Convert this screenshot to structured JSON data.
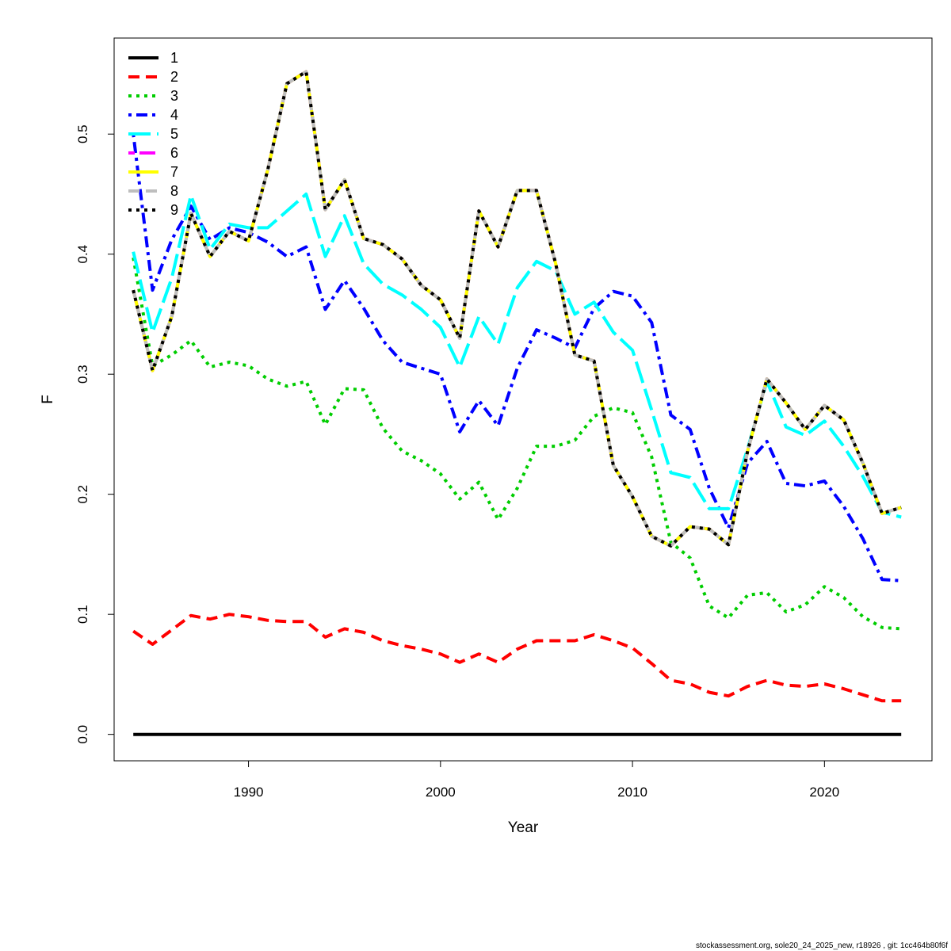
{
  "footer": "stockassessment.org, sole20_24_2025_new, r18926 , git: 1cc464b80f6f",
  "chart_data": {
    "type": "line",
    "title": "",
    "xlabel": "Year",
    "ylabel": "F",
    "xlim": [
      1983,
      2025.6
    ],
    "ylim": [
      -0.022,
      0.58
    ],
    "xticks": [
      1990,
      2000,
      2010,
      2020
    ],
    "yticks": [
      0.0,
      0.1,
      0.2,
      0.3,
      0.4,
      0.5
    ],
    "ytick_labels": [
      "0.0",
      "0.1",
      "0.2",
      "0.3",
      "0.4",
      "0.5"
    ],
    "legend": {
      "position": "top-left",
      "entries": [
        "1",
        "2",
        "3",
        "4",
        "5",
        "6",
        "7",
        "8",
        "9"
      ]
    },
    "x": [
      1984,
      1985,
      1986,
      1987,
      1988,
      1989,
      1990,
      1991,
      1992,
      1993,
      1994,
      1995,
      1996,
      1997,
      1998,
      1999,
      2000,
      2001,
      2002,
      2003,
      2004,
      2005,
      2006,
      2007,
      2008,
      2009,
      2010,
      2011,
      2012,
      2013,
      2014,
      2015,
      2016,
      2017,
      2018,
      2019,
      2020,
      2021,
      2022,
      2023,
      2024
    ],
    "series": [
      {
        "name": "1",
        "color": "#000000",
        "dash": "solid",
        "values": [
          0,
          0,
          0,
          0,
          0,
          0,
          0,
          0,
          0,
          0,
          0,
          0,
          0,
          0,
          0,
          0,
          0,
          0,
          0,
          0,
          0,
          0,
          0,
          0,
          0,
          0,
          0,
          0,
          0,
          0,
          0,
          0,
          0,
          0,
          0,
          0,
          0,
          0,
          0,
          0,
          0
        ]
      },
      {
        "name": "2",
        "color": "#ff0000",
        "dash": "dashed",
        "values": [
          0.086,
          0.075,
          0.087,
          0.099,
          0.096,
          0.1,
          0.098,
          0.095,
          0.094,
          0.094,
          0.081,
          0.088,
          0.085,
          0.078,
          0.074,
          0.071,
          0.067,
          0.06,
          0.067,
          0.06,
          0.071,
          0.078,
          0.078,
          0.078,
          0.083,
          0.078,
          0.072,
          0.059,
          0.045,
          0.042,
          0.035,
          0.032,
          0.04,
          0.045,
          0.041,
          0.04,
          0.042,
          0.038,
          0.033,
          0.028,
          0.028
        ]
      },
      {
        "name": "3",
        "color": "#00cd00",
        "dash": "dotted",
        "values": [
          0.397,
          0.307,
          0.316,
          0.328,
          0.306,
          0.31,
          0.307,
          0.296,
          0.29,
          0.294,
          0.258,
          0.288,
          0.287,
          0.255,
          0.236,
          0.228,
          0.217,
          0.196,
          0.21,
          0.179,
          0.205,
          0.24,
          0.24,
          0.245,
          0.265,
          0.272,
          0.268,
          0.231,
          0.16,
          0.147,
          0.107,
          0.097,
          0.116,
          0.118,
          0.102,
          0.108,
          0.123,
          0.114,
          0.098,
          0.089,
          0.088
        ]
      },
      {
        "name": "4",
        "color": "#0000ff",
        "dash": "dotdash",
        "values": [
          0.5,
          0.37,
          0.412,
          0.44,
          0.412,
          0.422,
          0.418,
          0.41,
          0.398,
          0.406,
          0.354,
          0.378,
          0.355,
          0.328,
          0.31,
          0.305,
          0.3,
          0.252,
          0.278,
          0.257,
          0.305,
          0.337,
          0.33,
          0.322,
          0.355,
          0.369,
          0.365,
          0.343,
          0.266,
          0.254,
          0.205,
          0.172,
          0.226,
          0.244,
          0.209,
          0.207,
          0.211,
          0.19,
          0.163,
          0.129,
          0.128
        ]
      },
      {
        "name": "5",
        "color": "#00ffff",
        "dash": "longdash",
        "values": [
          0.402,
          0.335,
          0.38,
          0.449,
          0.404,
          0.425,
          0.422,
          0.422,
          0.436,
          0.45,
          0.398,
          0.432,
          0.392,
          0.375,
          0.366,
          0.354,
          0.339,
          0.306,
          0.348,
          0.325,
          0.372,
          0.394,
          0.386,
          0.35,
          0.36,
          0.335,
          0.32,
          0.27,
          0.218,
          0.214,
          0.188,
          0.188,
          0.238,
          0.294,
          0.256,
          0.249,
          0.261,
          0.24,
          0.215,
          0.185,
          0.181
        ]
      },
      {
        "name": "6",
        "color": "#ff00ff",
        "dash": "twodash",
        "values": [
          0.37,
          0.303,
          0.348,
          0.434,
          0.398,
          0.419,
          0.411,
          0.47,
          0.542,
          0.552,
          0.437,
          0.462,
          0.413,
          0.408,
          0.396,
          0.374,
          0.362,
          0.33,
          0.436,
          0.406,
          0.453,
          0.453,
          0.392,
          0.316,
          0.311,
          0.224,
          0.198,
          0.165,
          0.157,
          0.173,
          0.171,
          0.158,
          0.236,
          0.296,
          0.276,
          0.254,
          0.274,
          0.262,
          0.226,
          0.184,
          0.189
        ]
      },
      {
        "name": "7",
        "color": "#ffff00",
        "dash": "solid",
        "values": [
          0.37,
          0.303,
          0.348,
          0.434,
          0.398,
          0.419,
          0.411,
          0.47,
          0.542,
          0.552,
          0.437,
          0.462,
          0.413,
          0.408,
          0.396,
          0.374,
          0.362,
          0.33,
          0.436,
          0.406,
          0.453,
          0.453,
          0.392,
          0.316,
          0.311,
          0.224,
          0.198,
          0.165,
          0.157,
          0.173,
          0.171,
          0.158,
          0.236,
          0.296,
          0.276,
          0.254,
          0.274,
          0.262,
          0.226,
          0.184,
          0.189
        ]
      },
      {
        "name": "8",
        "color": "#bebebe",
        "dash": "dashed",
        "values": [
          0.37,
          0.303,
          0.348,
          0.434,
          0.398,
          0.419,
          0.411,
          0.47,
          0.542,
          0.552,
          0.437,
          0.462,
          0.413,
          0.408,
          0.396,
          0.374,
          0.362,
          0.33,
          0.436,
          0.406,
          0.453,
          0.453,
          0.392,
          0.316,
          0.311,
          0.224,
          0.198,
          0.165,
          0.157,
          0.173,
          0.171,
          0.158,
          0.236,
          0.296,
          0.276,
          0.254,
          0.274,
          0.262,
          0.226,
          0.184,
          0.189
        ]
      },
      {
        "name": "9",
        "color": "#000000",
        "dash": "dotted",
        "values": [
          0.37,
          0.303,
          0.348,
          0.434,
          0.398,
          0.419,
          0.411,
          0.47,
          0.542,
          0.552,
          0.437,
          0.462,
          0.413,
          0.408,
          0.396,
          0.374,
          0.362,
          0.33,
          0.436,
          0.406,
          0.453,
          0.453,
          0.392,
          0.316,
          0.311,
          0.224,
          0.198,
          0.165,
          0.157,
          0.173,
          0.171,
          0.158,
          0.236,
          0.296,
          0.276,
          0.254,
          0.274,
          0.262,
          0.226,
          0.184,
          0.189
        ]
      }
    ]
  }
}
